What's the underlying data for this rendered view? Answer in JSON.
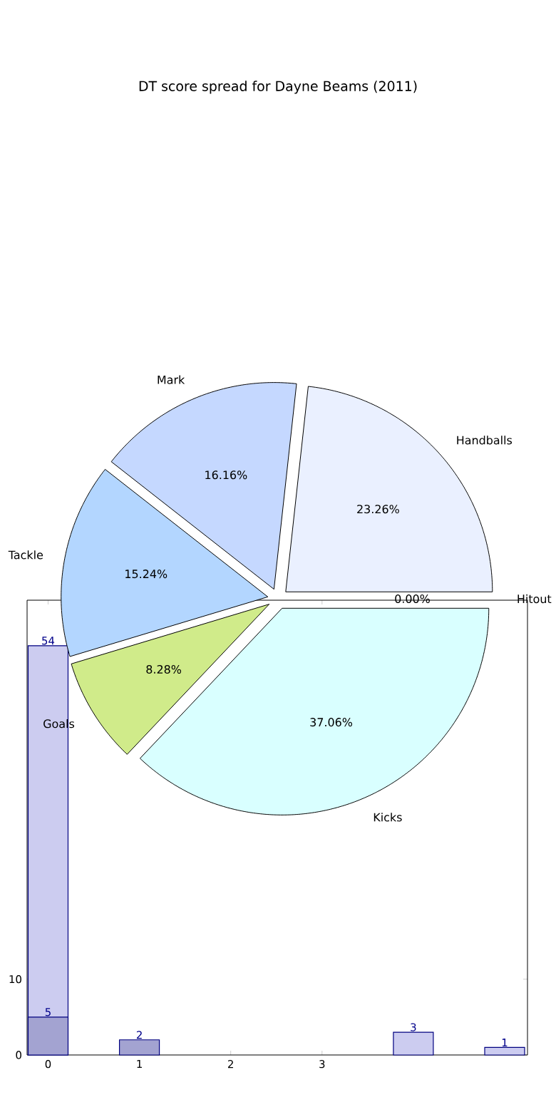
{
  "chart_data": [
    {
      "type": "pie",
      "title": "DT score spread for Dayne Beams (2011)",
      "categories": [
        "Handballs",
        "Mark",
        "Tackle",
        "Goals",
        "Kicks",
        "Hitout"
      ],
      "values": [
        23.26,
        16.16,
        15.24,
        8.28,
        37.06,
        0.0
      ],
      "value_labels": [
        "23.26%",
        "16.16%",
        "15.24%",
        "8.28%",
        "37.06%",
        "0.00%"
      ],
      "colors": [
        "#eaf0ff",
        "#c5d8ff",
        "#b3d6ff",
        "#d0eb8a",
        "#d9ffff",
        "#d3d3d3"
      ]
    },
    {
      "type": "bar",
      "categories": [
        "0",
        "1",
        "2",
        "3",
        null,
        null
      ],
      "series": [
        {
          "color": "#ccccf0",
          "values": [
            54,
            null,
            null,
            null,
            3,
            1
          ]
        },
        {
          "color": "#a3a3d1",
          "values": [
            5,
            2,
            null,
            null,
            null,
            null
          ]
        }
      ],
      "ylim": [
        0,
        60
      ],
      "yticks": [
        0,
        10
      ],
      "data_labels": true
    }
  ]
}
